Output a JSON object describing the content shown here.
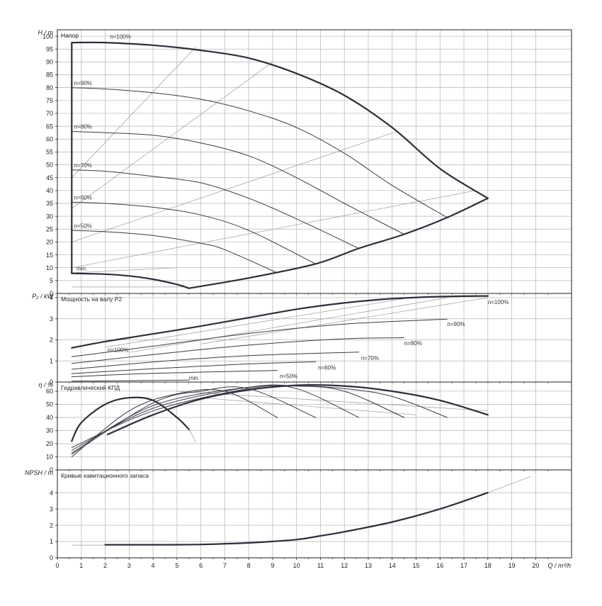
{
  "colors": {
    "grid": "#b4b4b4",
    "frame": "#222222",
    "curve": "#2e2e3a",
    "thin": "#3a3a44",
    "aux": "#9a9a9a"
  },
  "x_axis": {
    "label": "Q / m³/h",
    "ticks": [
      0,
      1,
      2,
      3,
      4,
      5,
      6,
      7,
      8,
      9,
      10,
      11,
      12,
      13,
      14,
      15,
      16,
      17,
      18,
      19,
      20
    ],
    "range": [
      0,
      21.5
    ]
  },
  "chart_data": [
    {
      "type": "line",
      "panel": "head",
      "title": "Напор",
      "ylabel": "H / m",
      "ylim": [
        0,
        102.5
      ],
      "yticks": [
        0,
        5,
        10,
        15,
        20,
        25,
        30,
        35,
        40,
        45,
        50,
        55,
        60,
        65,
        70,
        75,
        80,
        85,
        90,
        95,
        100
      ],
      "series": [
        {
          "name": "n=100%",
          "bold": true,
          "x": [
            0.6,
            2.0,
            4.0,
            6.0,
            8.0,
            10.0,
            12.0,
            14.0,
            16.0,
            18.0
          ],
          "y": [
            97.5,
            97.5,
            96.5,
            94.5,
            91.5,
            85.5,
            77.0,
            64.5,
            48.5,
            37.0
          ]
        },
        {
          "name": "n=90%",
          "x": [
            0.6,
            2.0,
            4.0,
            6.0,
            8.0,
            10.0,
            12.0,
            14.0,
            16.3
          ],
          "y": [
            80.0,
            79.5,
            78.0,
            75.5,
            71.0,
            64.5,
            54.5,
            42.0,
            29.5
          ]
        },
        {
          "name": "n=80%",
          "x": [
            0.6,
            2.0,
            4.0,
            6.0,
            8.0,
            10.0,
            12.0,
            14.5
          ],
          "y": [
            63.0,
            62.5,
            61.5,
            58.5,
            53.5,
            45.0,
            35.0,
            23.0
          ]
        },
        {
          "name": "n=70%",
          "x": [
            0.6,
            2.0,
            4.0,
            6.0,
            8.0,
            10.0,
            12.6
          ],
          "y": [
            48.0,
            47.5,
            45.5,
            43.0,
            37.0,
            29.0,
            17.5
          ]
        },
        {
          "name": "n=60%",
          "x": [
            0.6,
            2.0,
            4.0,
            6.0,
            8.0,
            10.8
          ],
          "y": [
            35.5,
            35.0,
            33.5,
            30.5,
            24.5,
            11.5
          ]
        },
        {
          "name": "n=50%",
          "x": [
            0.6,
            2.0,
            4.0,
            6.0,
            7.0,
            9.2
          ],
          "y": [
            24.5,
            24.0,
            22.5,
            19.5,
            17.0,
            8.0
          ]
        },
        {
          "name": "min.",
          "bold": true,
          "x": [
            0.6,
            2.0,
            3.0,
            4.0,
            5.0,
            5.5
          ],
          "y": [
            7.8,
            7.5,
            6.8,
            5.5,
            3.5,
            2.0
          ]
        },
        {
          "name": "",
          "bold": true,
          "x": [
            0.6,
            0.6
          ],
          "y": [
            7.8,
            97.5
          ]
        },
        {
          "name": "",
          "bold": true,
          "x": [
            5.5,
            8.0,
            10.8,
            12.6,
            14.5,
            16.3,
            18.0
          ],
          "y": [
            2.0,
            6.0,
            11.5,
            17.5,
            23.0,
            29.5,
            37.0
          ]
        }
      ],
      "aux_lines": [
        {
          "x": [
            0.6,
            5.8
          ],
          "y": [
            45,
            96
          ]
        },
        {
          "x": [
            0.6,
            9.0
          ],
          "y": [
            33,
            90
          ]
        },
        {
          "x": [
            0.6,
            14.2
          ],
          "y": [
            20,
            63
          ]
        },
        {
          "x": [
            0.6,
            17.5
          ],
          "y": [
            10,
            40
          ]
        },
        {
          "x": [
            0.6,
            5.5
          ],
          "y": [
            2.5,
            2.5
          ]
        },
        {
          "x": [
            0.6,
            5.0
          ],
          "y": [
            8,
            10
          ]
        }
      ],
      "labels": [
        {
          "text": "n=100%",
          "x": 2.2,
          "y": 99.0
        },
        {
          "text": "n=90%",
          "x": 0.7,
          "y": 81.0
        },
        {
          "text": "n=80%",
          "x": 0.7,
          "y": 64.0
        },
        {
          "text": "n=70%",
          "x": 0.7,
          "y": 49.0
        },
        {
          "text": "n=60%",
          "x": 0.7,
          "y": 36.5
        },
        {
          "text": "n=50%",
          "x": 0.7,
          "y": 25.5
        },
        {
          "text": "min.",
          "x": 0.8,
          "y": 9.0
        }
      ]
    },
    {
      "type": "line",
      "panel": "power",
      "title": "Мощность на валу P2",
      "ylabel": "P₂ / kW",
      "ylim": [
        0,
        4.2
      ],
      "yticks": [
        0,
        1,
        2,
        3,
        4
      ],
      "series": [
        {
          "name": "n=100%",
          "bold": true,
          "x": [
            0.6,
            2,
            4,
            6,
            8,
            10,
            12,
            14,
            16,
            18
          ],
          "y": [
            1.62,
            1.92,
            2.28,
            2.65,
            3.05,
            3.45,
            3.75,
            3.95,
            4.05,
            4.08
          ]
        },
        {
          "name": "n=90%",
          "x": [
            0.6,
            4,
            8,
            12,
            16.3
          ],
          "y": [
            1.2,
            1.7,
            2.3,
            2.75,
            2.98
          ]
        },
        {
          "name": "n=80%",
          "x": [
            0.6,
            4,
            8,
            12,
            14.5
          ],
          "y": [
            0.88,
            1.3,
            1.75,
            2.05,
            2.1
          ]
        },
        {
          "name": "n=70%",
          "x": [
            0.6,
            4,
            8,
            12.6
          ],
          "y": [
            0.6,
            0.95,
            1.25,
            1.42
          ]
        },
        {
          "name": "n=60%",
          "x": [
            0.6,
            4,
            8,
            10.8
          ],
          "y": [
            0.4,
            0.63,
            0.86,
            0.96
          ]
        },
        {
          "name": "n=50%",
          "x": [
            0.6,
            4,
            9.2
          ],
          "y": [
            0.25,
            0.41,
            0.55
          ]
        },
        {
          "name": "min.",
          "x": [
            0.6,
            5.5
          ],
          "y": [
            0.04,
            0.09
          ]
        }
      ],
      "aux_lines": [
        {
          "x": [
            2,
            14.5
          ],
          "y": [
            1.65,
            3.95
          ]
        },
        {
          "x": [
            3,
            16.3
          ],
          "y": [
            1.4,
            4.0
          ]
        },
        {
          "x": [
            6,
            18
          ],
          "y": [
            1.8,
            4.0
          ]
        }
      ],
      "labels": [
        {
          "text": "n=100%",
          "x": 18.0,
          "y": 3.7
        },
        {
          "text": "n=90%",
          "x": 16.3,
          "y": 2.65
        },
        {
          "text": "n=80%",
          "x": 14.5,
          "y": 1.75
        },
        {
          "text": "n=70%",
          "x": 12.7,
          "y": 1.05
        },
        {
          "text": "n=60%",
          "x": 10.9,
          "y": 0.58
        },
        {
          "text": "n=50%",
          "x": 9.3,
          "y": 0.18
        },
        {
          "text": "n=100%",
          "x": 2.1,
          "y": 1.42
        },
        {
          "text": "min.",
          "x": 5.5,
          "y": 0.1
        }
      ]
    },
    {
      "type": "line",
      "panel": "efficiency",
      "title": "Гидравлический КПД",
      "ylabel": "η / %",
      "ylim": [
        0,
        67
      ],
      "yticks": [
        0,
        10,
        20,
        30,
        40,
        50,
        60
      ],
      "series": [
        {
          "name": "n=100%",
          "bold": true,
          "x": [
            2.1,
            4,
            6,
            8,
            10,
            12,
            14,
            16,
            18
          ],
          "y": [
            27,
            42,
            54,
            61,
            64.5,
            64,
            60,
            53,
            42
          ]
        },
        {
          "name": "n=90%",
          "x": [
            0.6,
            4,
            8,
            10,
            12,
            14,
            16.3
          ],
          "y": [
            17,
            45,
            62,
            64,
            62,
            56,
            40
          ]
        },
        {
          "name": "n=80%",
          "x": [
            0.6,
            4,
            8,
            10,
            12,
            14.5
          ],
          "y": [
            15,
            47,
            63,
            64,
            60,
            40
          ]
        },
        {
          "name": "n=70%",
          "x": [
            0.6,
            4,
            8,
            10,
            12.6
          ],
          "y": [
            13,
            49,
            63,
            62,
            40
          ]
        },
        {
          "name": "n=60%",
          "x": [
            0.6,
            4,
            6,
            8,
            10.8
          ],
          "y": [
            12,
            51,
            60,
            62,
            40
          ]
        },
        {
          "name": "n=50%",
          "x": [
            0.6,
            3,
            5,
            7,
            9.2
          ],
          "y": [
            10,
            45,
            58,
            60,
            40
          ]
        },
        {
          "name": "min.",
          "bold": true,
          "x": [
            0.6,
            1,
            2,
            3,
            4,
            5,
            5.5
          ],
          "y": [
            22,
            36,
            50,
            55,
            53,
            40,
            31
          ]
        }
      ],
      "aux_lines": [
        {
          "x": [
            5.5,
            5.8
          ],
          "y": [
            31,
            21
          ]
        },
        {
          "x": [
            5,
            18
          ],
          "y": [
            60,
            45
          ]
        },
        {
          "x": [
            6,
            15
          ],
          "y": [
            55,
            42
          ]
        }
      ],
      "labels": []
    },
    {
      "type": "line",
      "panel": "npsh",
      "title": "Кривые кавитационного запаса",
      "ylabel": "NPSH / m",
      "ylim": [
        0,
        5.4
      ],
      "yticks": [
        0,
        1,
        2,
        3,
        4
      ],
      "series": [
        {
          "name": "",
          "bold": true,
          "x": [
            2,
            4,
            6,
            8,
            10,
            11,
            12,
            14,
            16,
            18
          ],
          "y": [
            0.8,
            0.8,
            0.82,
            0.92,
            1.12,
            1.35,
            1.6,
            2.2,
            3.0,
            4.0
          ]
        }
      ],
      "aux_lines": [
        {
          "x": [
            0.6,
            2
          ],
          "y": [
            0.78,
            0.78
          ]
        },
        {
          "x": [
            18,
            19.8
          ],
          "y": [
            4.0,
            5.0
          ]
        }
      ],
      "labels": []
    }
  ]
}
